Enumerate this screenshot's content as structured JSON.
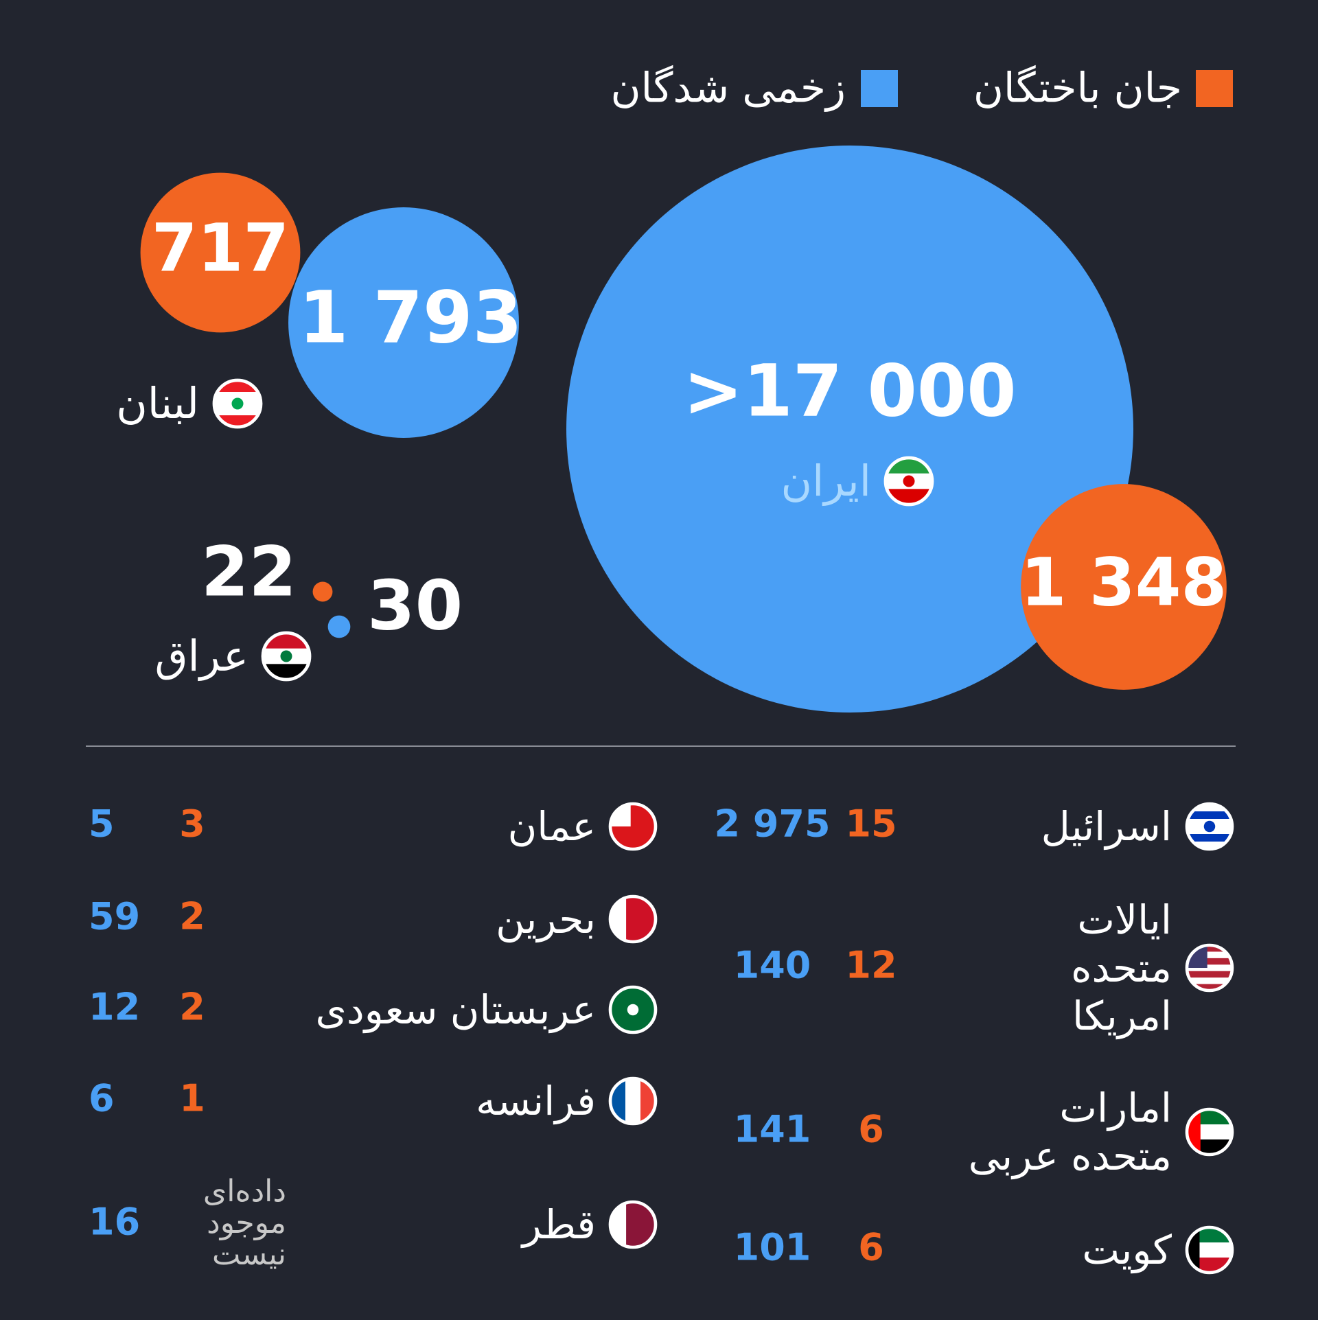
{
  "legend": {
    "killed": {
      "label": "جان باختگان",
      "color": "#f26522"
    },
    "injured": {
      "label": "زخمی شدگان",
      "color": "#4a9ff5"
    }
  },
  "bubbles": [
    {
      "name": "ایران",
      "killed": {
        "value": 1348,
        "label": "1 348"
      },
      "injured": {
        "value": 17000,
        "label": ">17 000"
      }
    },
    {
      "name": "لبنان",
      "killed": 717,
      "injured": {
        "value": 1793,
        "label": "1 793"
      }
    },
    {
      "name": "عراق",
      "killed": 22,
      "injured": 30
    }
  ],
  "table": {
    "right": [
      {
        "name": [
          "اسرائیل"
        ],
        "killed": 15,
        "injured": {
          "value": 2975,
          "label": "2 975"
        }
      },
      {
        "name": [
          "ایالات",
          "متحده",
          "امریکا"
        ],
        "killed": 12,
        "injured": 140
      },
      {
        "name": [
          "امارات",
          "متحده عربی"
        ],
        "killed": 6,
        "injured": 141
      },
      {
        "name": [
          "کویت"
        ],
        "killed": 6,
        "injured": 101
      }
    ],
    "left": [
      {
        "name": [
          "عمان"
        ],
        "killed": 3,
        "injured": 5
      },
      {
        "name": [
          "بحرین"
        ],
        "killed": 2,
        "injured": 59
      },
      {
        "name": [
          "عربستان سعودی"
        ],
        "killed": 2,
        "injured": 12
      },
      {
        "name": [
          "فرانسه"
        ],
        "killed": 1,
        "injured": 6
      },
      {
        "name": [
          "قطر"
        ],
        "killed": [
          "داده‌ای",
          "موجود",
          "نیست"
        ],
        "injured": 16
      }
    ]
  }
}
